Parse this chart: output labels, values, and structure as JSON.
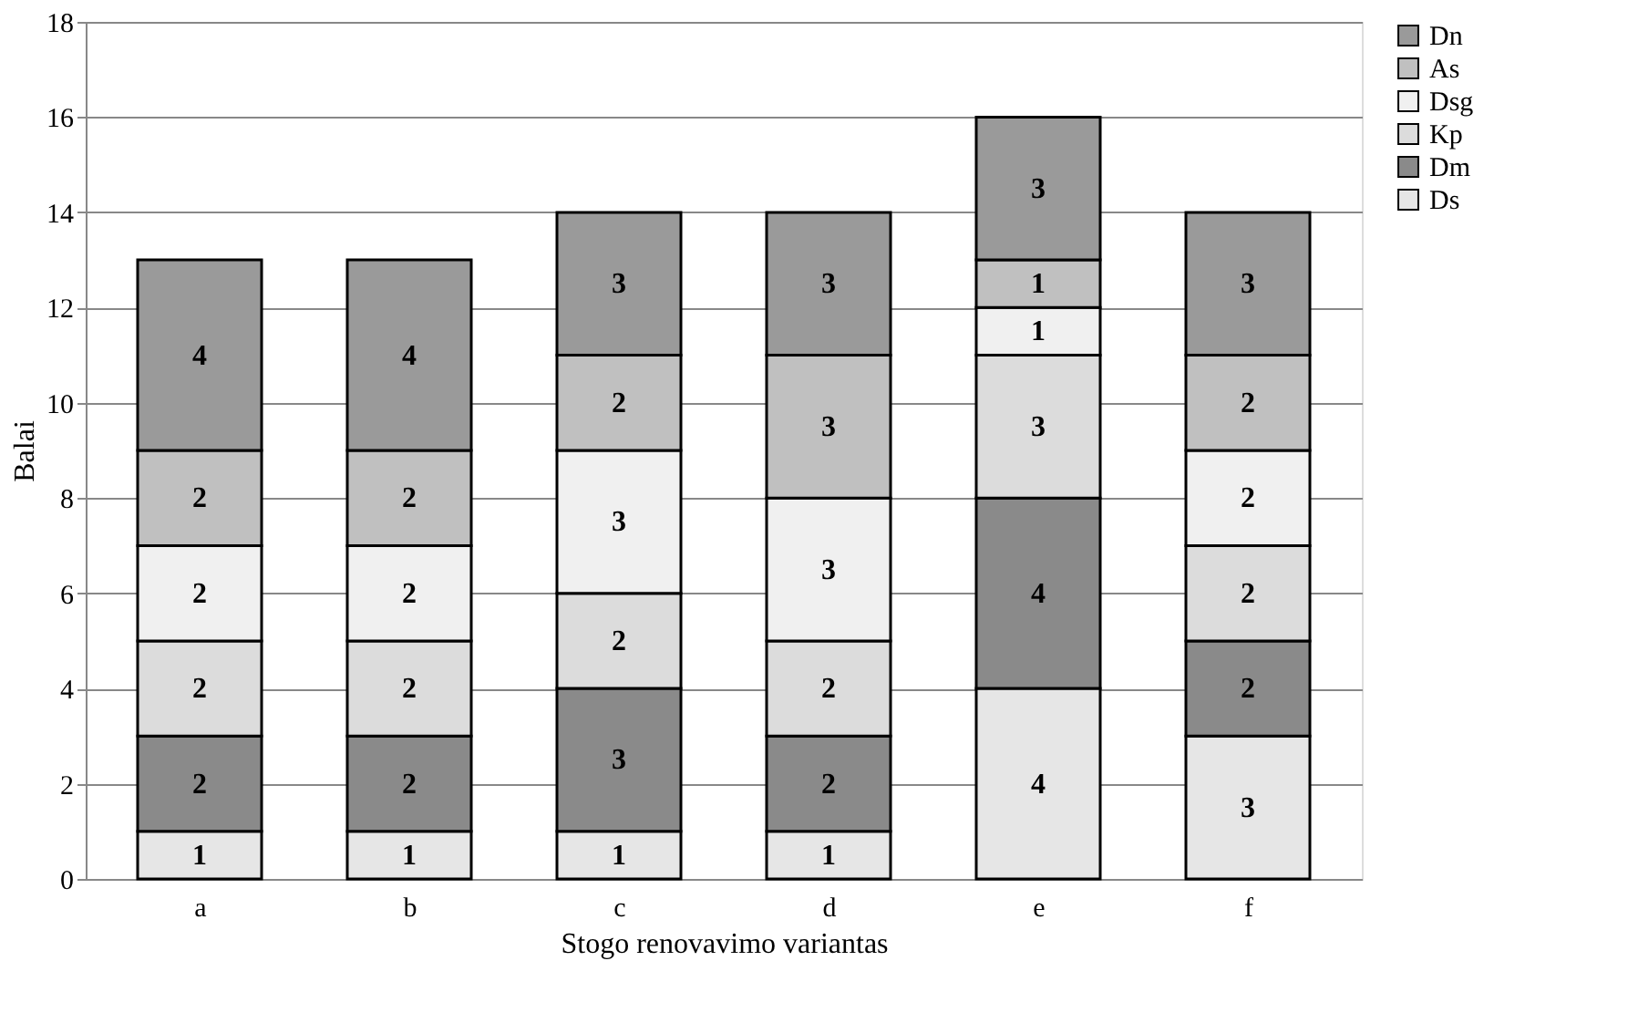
{
  "chart_data": {
    "type": "bar",
    "stacked": true,
    "xlabel": "Stogo renovavimo variantas",
    "ylabel": "Balai",
    "categories": [
      "a",
      "b",
      "c",
      "d",
      "e",
      "f"
    ],
    "series": [
      {
        "name": "Ds",
        "color": "#e6e6e6",
        "values": [
          1,
          1,
          1,
          1,
          4,
          3
        ]
      },
      {
        "name": "Dm",
        "color": "#8a8a8a",
        "values": [
          2,
          2,
          3,
          2,
          4,
          2
        ]
      },
      {
        "name": "Kp",
        "color": "#dcdcdc",
        "values": [
          2,
          2,
          2,
          2,
          3,
          2
        ]
      },
      {
        "name": "Dsg",
        "color": "#f0f0f0",
        "values": [
          2,
          2,
          3,
          3,
          1,
          2
        ]
      },
      {
        "name": "As",
        "color": "#c0c0c0",
        "values": [
          2,
          2,
          2,
          3,
          1,
          2
        ]
      },
      {
        "name": "Dn",
        "color": "#9a9a9a",
        "values": [
          4,
          4,
          3,
          3,
          3,
          3
        ]
      }
    ],
    "ylim": [
      0,
      18
    ],
    "yticks": [
      0,
      2,
      4,
      6,
      8,
      10,
      12,
      14,
      16,
      18
    ],
    "grid": "y",
    "legend": "right",
    "data_labels": true
  }
}
